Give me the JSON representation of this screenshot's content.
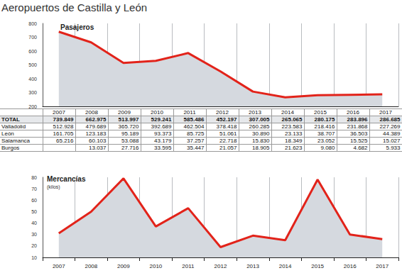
{
  "title": "Aeropuertos de Castilla y León",
  "chart_data": [
    {
      "type": "line",
      "title": "Pasajeros",
      "categories": [
        "2007",
        "2008",
        "2009",
        "2010",
        "2011",
        "2012",
        "2013",
        "2014",
        "2015",
        "2016",
        "2017"
      ],
      "values": [
        739.849,
        662.975,
        513.997,
        529.241,
        585.486,
        452.197,
        307.005,
        265.065,
        280.175,
        283.896,
        286.685
      ],
      "color": "#e2231a",
      "ylim": [
        200,
        800
      ],
      "yticks": [
        200,
        300,
        400,
        500,
        600,
        700,
        800
      ],
      "grid": true,
      "tick_labels": "y"
    },
    {
      "type": "line",
      "title": "Mercancías",
      "subtitle": "(kilos)",
      "categories": [
        "2007",
        "2008",
        "2009",
        "2010",
        "2011",
        "2012",
        "2013",
        "2014",
        "2015",
        "2016",
        "2017"
      ],
      "values": [
        31,
        50,
        79,
        37,
        53,
        19,
        29,
        25,
        78,
        30,
        26
      ],
      "color": "#e2231a",
      "ylim": [
        10,
        80
      ],
      "yticks": [
        10,
        20,
        30,
        40,
        50,
        60,
        70,
        80
      ],
      "grid": true
    }
  ],
  "table": {
    "rows": [
      [
        "TOTAL",
        "739.849",
        "662.975",
        "513.997",
        "529.241",
        "585.486",
        "452.197",
        "307.005",
        "265.065",
        "280.175",
        "283.896",
        "286.685"
      ],
      [
        "Valladolid",
        "512.928",
        "479.689",
        "365.720",
        "392.689",
        "462.504",
        "378.418",
        "260.285",
        "223.583",
        "218.416",
        "231.868",
        "227.269"
      ],
      [
        "León",
        "161.705",
        "123.183",
        "95.189",
        "93.373",
        "85.725",
        "51.061",
        "30.890",
        "23.133",
        "38.707",
        "36.503",
        "44.389"
      ],
      [
        "Salamanca",
        "65.216",
        "60.103",
        "53.088",
        "43.179",
        "37.257",
        "22.718",
        "15.830",
        "18.349",
        "23.052",
        "15.525",
        "15.027"
      ],
      [
        "Burgos",
        null,
        "13.037",
        "27.716",
        "33.595",
        "35.447",
        "21.057",
        "18.905",
        "21.623",
        "9.080",
        "4.682",
        "5.933"
      ]
    ]
  }
}
